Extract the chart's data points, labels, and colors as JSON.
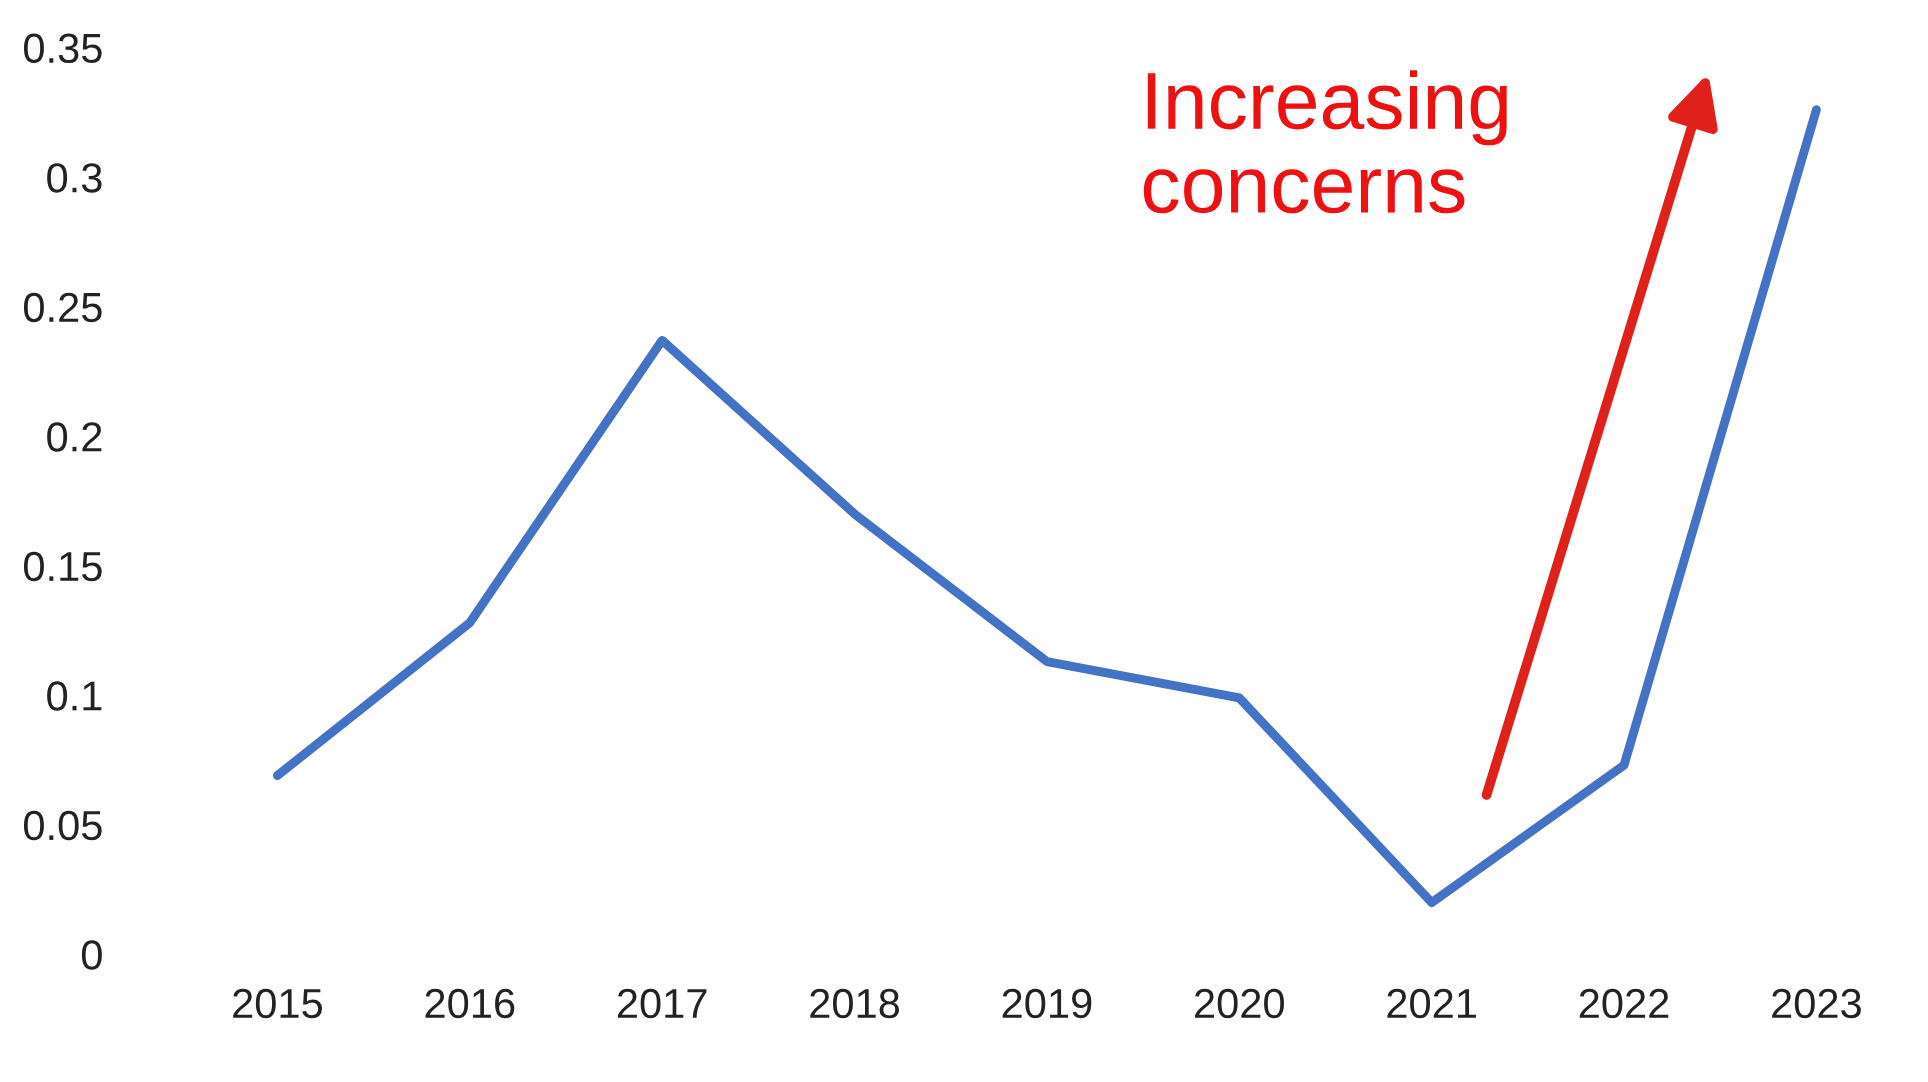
{
  "chart_data": {
    "type": "line",
    "categories": [
      "2015",
      "2016",
      "2017",
      "2018",
      "2019",
      "2020",
      "2021",
      "2022",
      "2023"
    ],
    "series": [
      {
        "color": "#4472c4",
        "values": [
          0.069,
          0.128,
          0.237,
          0.17,
          0.113,
          0.099,
          0.02,
          0.073,
          0.326
        ]
      }
    ],
    "ylim": [
      0,
      0.35
    ],
    "yticks": [
      0,
      0.05,
      0.1,
      0.15,
      0.2,
      0.25,
      0.3,
      0.35
    ],
    "annotations": [
      "Increasing\nconcerns"
    ],
    "grid": false,
    "legend": false,
    "marker": "none",
    "line_style": "solid"
  }
}
